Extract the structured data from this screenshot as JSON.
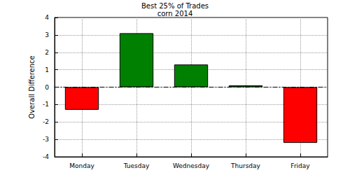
{
  "chart_data": {
    "type": "bar",
    "title": "Best 25% of Trades",
    "subtitle": "corn 2014",
    "y_label": "Overall Difference",
    "categories": [
      "Monday",
      "Tuesday",
      "Wednesday",
      "Thursday",
      "Friday"
    ],
    "values": [
      -1.3,
      3.1,
      1.3,
      0.1,
      -3.2
    ],
    "colors": [
      "#ff0000",
      "#008000",
      "#008000",
      "#008000",
      "#ff0000"
    ],
    "ylim": [
      -4,
      4
    ],
    "yticks": [
      -4,
      -3,
      -2,
      -1,
      0,
      1,
      2,
      3,
      4
    ],
    "grid": true
  }
}
